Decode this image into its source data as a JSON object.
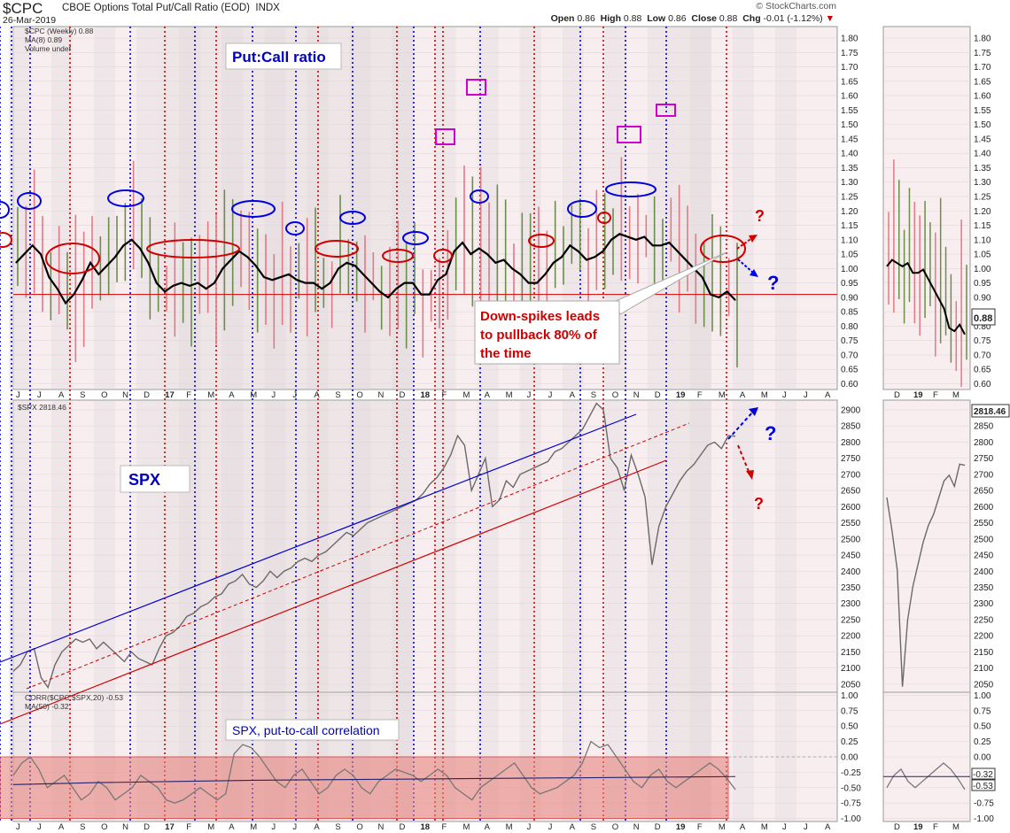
{
  "header": {
    "symbol": "$CPC",
    "name": "CBOE Options Total Put/Call Ratio (EOD)",
    "exchange": "INDX",
    "date": "26-Mar-2019",
    "open_label": "Open",
    "open": "0.86",
    "high_label": "High",
    "high": "0.88",
    "low_label": "Low",
    "low": "0.86",
    "close_label": "Close",
    "close": "0.88",
    "chg_label": "Chg",
    "chg": "-0.01 (-1.12%)",
    "logo": "© StockCharts.com"
  },
  "colors": {
    "up_bar": "#6a8f4a",
    "down_bar": "#e07a86",
    "ma_line": "#000000",
    "spx_line": "#6a6a6a",
    "blue_marker": "#0000e0",
    "red_marker": "#d00000",
    "magenta_marker": "#d000d0",
    "panel_bg": "#f8eef0",
    "shade": "#e8e0e3"
  },
  "chart_data": [
    {
      "type": "line",
      "panel": "put_call",
      "legend": [
        "$CPC (Weekly) 0.88",
        "MA(8) 0.89",
        "Volume undef"
      ],
      "series": [
        {
          "name": "MA(8)",
          "values": [
            1.02,
            1.05,
            1.08,
            1.05,
            0.97,
            0.93,
            0.88,
            0.91,
            0.96,
            1.02,
            0.98,
            1.01,
            1.04,
            1.08,
            1.1,
            1.07,
            1.02,
            0.95,
            0.92,
            0.94,
            0.95,
            0.94,
            0.95,
            0.93,
            0.95,
            1.0,
            1.03,
            1.06,
            1.04,
            1.01,
            0.97,
            0.96,
            0.97,
            0.98,
            0.96,
            0.95,
            0.95,
            0.93,
            0.95,
            1.0,
            1.02,
            1.01,
            0.98,
            0.95,
            0.92,
            0.9,
            0.93,
            0.95,
            0.95,
            0.91,
            0.91,
            0.96,
            0.98,
            1.06,
            1.09,
            1.05,
            1.07,
            1.05,
            1.02,
            1.03,
            1.0,
            0.98,
            0.95,
            0.95,
            0.98,
            1.02,
            1.04,
            1.08,
            1.06,
            1.03,
            1.04,
            1.06,
            1.1,
            1.12,
            1.11,
            1.1,
            1.11,
            1.08,
            1.08,
            1.09,
            1.06,
            1.03,
            1.0,
            0.97,
            0.91,
            0.9,
            0.92,
            0.89
          ]
        },
        {
          "name": "$CPC (Weekly)",
          "values": [
            0.88
          ]
        }
      ],
      "horizontal_line": 0.91,
      "ylim": [
        0.58,
        1.84
      ],
      "yticks": [
        "1.80",
        "1.75",
        "1.70",
        "1.65",
        "1.60",
        "1.55",
        "1.50",
        "1.45",
        "1.40",
        "1.35",
        "1.30",
        "1.25",
        "1.20",
        "1.15",
        "1.10",
        "1.05",
        "1.00",
        "0.95",
        "0.90",
        "0.85",
        "0.80",
        "0.75",
        "0.70",
        "0.65",
        "0.60"
      ],
      "annotation_title": "Put:Call ratio",
      "annotation_callout": [
        "Down-spikes leads",
        "to pullback 80% of",
        "the time"
      ],
      "question_marks": [
        "?",
        "?"
      ],
      "right_label": "0.88"
    },
    {
      "type": "line",
      "panel": "spx",
      "legend": [
        "$SPX 2818.46"
      ],
      "series": [
        {
          "name": "$SPX",
          "values": [
            2090,
            2110,
            2150,
            2160,
            2070,
            2040,
            2110,
            2150,
            2170,
            2190,
            2180,
            2190,
            2160,
            2180,
            2160,
            2140,
            2120,
            2150,
            2130,
            2120,
            2110,
            2160,
            2200,
            2210,
            2230,
            2260,
            2270,
            2290,
            2300,
            2320,
            2330,
            2360,
            2370,
            2390,
            2360,
            2350,
            2370,
            2400,
            2380,
            2400,
            2410,
            2430,
            2440,
            2430,
            2450,
            2460,
            2480,
            2500,
            2520,
            2510,
            2530,
            2550,
            2560,
            2570,
            2580,
            2590,
            2600,
            2610,
            2620,
            2640,
            2670,
            2690,
            2720,
            2760,
            2820,
            2790,
            2650,
            2700,
            2750,
            2600,
            2620,
            2680,
            2660,
            2700,
            2710,
            2720,
            2730,
            2740,
            2770,
            2780,
            2800,
            2820,
            2840,
            2880,
            2920,
            2900,
            2750,
            2720,
            2650,
            2760,
            2700,
            2630,
            2420,
            2540,
            2600,
            2640,
            2680,
            2710,
            2730,
            2760,
            2790,
            2800,
            2780,
            2820,
            2818
          ]
        }
      ],
      "ylim": [
        2025,
        2930
      ],
      "yticks": [
        "2900",
        "2850",
        "2800",
        "2750",
        "2700",
        "2650",
        "2600",
        "2550",
        "2500",
        "2450",
        "2400",
        "2350",
        "2300",
        "2250",
        "2200",
        "2150",
        "2100",
        "2050"
      ],
      "annotation_title": "SPX",
      "question_marks": [
        "?",
        "?"
      ],
      "right_label": "2818.46"
    },
    {
      "type": "line",
      "panel": "correlation",
      "legend": [
        "CORR($CPC,$SPX,20) -0.53",
        "MA(50) -0.32"
      ],
      "series": [
        {
          "name": "CORR($CPC,$SPX,20)",
          "values": [
            -0.3,
            -0.1,
            0.0,
            -0.2,
            -0.5,
            -0.4,
            -0.3,
            -0.5,
            -0.7,
            -0.6,
            -0.4,
            -0.5,
            -0.7,
            -0.6,
            -0.5,
            -0.3,
            -0.4,
            -0.5,
            -0.7,
            -0.75,
            -0.7,
            -0.6,
            -0.5,
            -0.6,
            -0.7,
            -0.6,
            0.05,
            0.2,
            0.15,
            0.0,
            -0.2,
            -0.4,
            -0.5,
            -0.3,
            -0.2,
            -0.4,
            -0.6,
            -0.5,
            -0.3,
            -0.2,
            -0.3,
            -0.5,
            -0.6,
            -0.4,
            -0.3,
            -0.2,
            -0.25,
            -0.3,
            -0.4,
            -0.3,
            -0.2,
            -0.3,
            -0.5,
            -0.6,
            -0.7,
            -0.5,
            -0.4,
            -0.3,
            -0.2,
            -0.1,
            -0.3,
            -0.5,
            -0.6,
            -0.55,
            -0.5,
            -0.4,
            -0.3,
            -0.1,
            0.25,
            0.15,
            0.2,
            0.0,
            -0.2,
            -0.4,
            -0.5,
            -0.3,
            -0.2,
            -0.4,
            -0.5,
            -0.4,
            -0.3,
            -0.2,
            -0.1,
            -0.2,
            -0.35,
            -0.53
          ]
        },
        {
          "name": "MA(50)",
          "values": [
            -0.45,
            -0.42,
            -0.4,
            -0.38,
            -0.37,
            -0.36,
            -0.35,
            -0.34,
            -0.33,
            -0.32
          ]
        }
      ],
      "ylim": [
        -1.05,
        1.05
      ],
      "yticks": [
        "1.00",
        "0.75",
        "0.50",
        "0.25",
        "0.00",
        "-0.25",
        "-0.50",
        "-0.75",
        "-1.00"
      ],
      "annotation_title": "SPX, put-to-call correlation",
      "right_labels": [
        "-0.32",
        "-0.53"
      ]
    }
  ],
  "x_axis": {
    "ticks": [
      "J",
      "J",
      "A",
      "S",
      "O",
      "N",
      "D",
      "17",
      "F",
      "M",
      "A",
      "M",
      "J",
      "J",
      "A",
      "S",
      "O",
      "N",
      "D",
      "18",
      "F",
      "M",
      "A",
      "M",
      "J",
      "J",
      "A",
      "S",
      "O",
      "N",
      "D",
      "19",
      "F",
      "M",
      "A",
      "M",
      "J",
      "J",
      "A"
    ],
    "inset_ticks": [
      "D",
      "19",
      "F",
      "M"
    ]
  }
}
